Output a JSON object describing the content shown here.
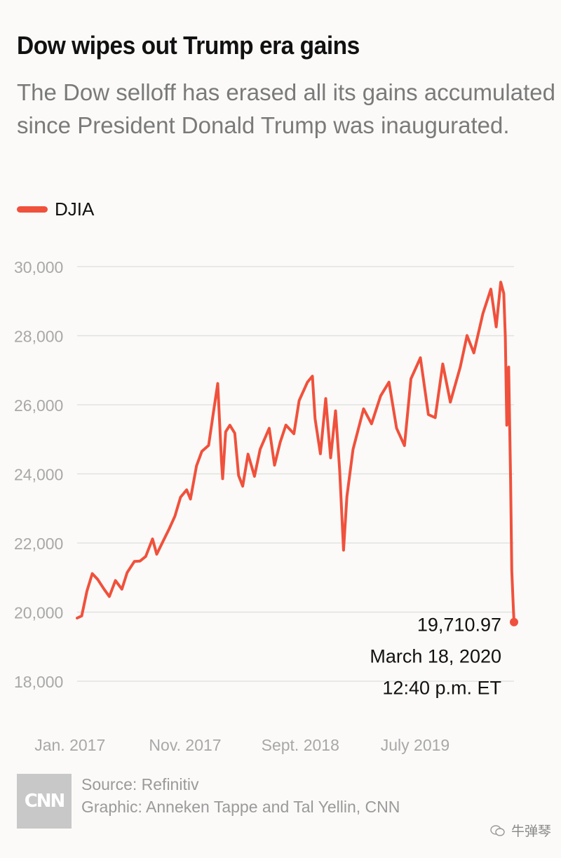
{
  "header": {
    "title": "Dow wipes out Trump era gains",
    "subtitle": "The Dow selloff has erased all its gains accumulated since President Donald Trump was inaugurated."
  },
  "legend": {
    "label": "DJIA",
    "color": "#f0513c"
  },
  "footer": {
    "logo_text": "CNN",
    "source": "Source: Refinitiv",
    "graphic": "Graphic: Anneken Tappe and Tal Yellin, CNN",
    "watermark": "牛弹琴"
  },
  "chart_data": {
    "type": "line",
    "title": "Dow wipes out Trump era gains",
    "subtitle": "The Dow selloff has erased all its gains accumulated since President Donald Trump was inaugurated.",
    "xlabel": "",
    "ylabel": "",
    "ylim": [
      18000,
      30000
    ],
    "xlim": [
      "2017-01-20",
      "2020-03-18"
    ],
    "y_ticks": [
      30000,
      28000,
      26000,
      24000,
      22000,
      20000,
      18000
    ],
    "y_tick_labels": [
      "30,000",
      "28,000",
      "26,000",
      "24,000",
      "22,000",
      "20,000",
      "18,000"
    ],
    "x_ticks": [
      {
        "date": "2017-01-01",
        "label": "Jan. 2017"
      },
      {
        "date": "2017-11-01",
        "label": "Nov. 2017"
      },
      {
        "date": "2018-09-01",
        "label": "Sept. 2018"
      },
      {
        "date": "2019-07-01",
        "label": "July 2019"
      }
    ],
    "grid": true,
    "legend_position": "top-left",
    "series": [
      {
        "name": "DJIA",
        "color": "#f0513c",
        "points": [
          [
            "2017-01-20",
            19827
          ],
          [
            "2017-02-01",
            19890
          ],
          [
            "2017-02-15",
            20611
          ],
          [
            "2017-03-01",
            21115
          ],
          [
            "2017-03-15",
            20950
          ],
          [
            "2017-04-01",
            20663
          ],
          [
            "2017-04-15",
            20450
          ],
          [
            "2017-05-01",
            20913
          ],
          [
            "2017-05-18",
            20663
          ],
          [
            "2017-06-01",
            21144
          ],
          [
            "2017-06-20",
            21467
          ],
          [
            "2017-07-05",
            21479
          ],
          [
            "2017-07-20",
            21611
          ],
          [
            "2017-08-07",
            22118
          ],
          [
            "2017-08-18",
            21675
          ],
          [
            "2017-09-01",
            21988
          ],
          [
            "2017-09-20",
            22412
          ],
          [
            "2017-10-05",
            22775
          ],
          [
            "2017-10-20",
            23328
          ],
          [
            "2017-11-05",
            23539
          ],
          [
            "2017-11-15",
            23271
          ],
          [
            "2017-12-01",
            24231
          ],
          [
            "2017-12-15",
            24651
          ],
          [
            "2018-01-02",
            24824
          ],
          [
            "2018-01-15",
            25803
          ],
          [
            "2018-01-26",
            26616
          ],
          [
            "2018-02-05",
            24346
          ],
          [
            "2018-02-08",
            23860
          ],
          [
            "2018-02-16",
            25219
          ],
          [
            "2018-02-27",
            25410
          ],
          [
            "2018-03-12",
            25178
          ],
          [
            "2018-03-22",
            23957
          ],
          [
            "2018-04-02",
            23644
          ],
          [
            "2018-04-16",
            24573
          ],
          [
            "2018-05-03",
            23930
          ],
          [
            "2018-05-18",
            24715
          ],
          [
            "2018-06-11",
            25322
          ],
          [
            "2018-06-25",
            24252
          ],
          [
            "2018-07-10",
            24920
          ],
          [
            "2018-07-25",
            25414
          ],
          [
            "2018-08-15",
            25162
          ],
          [
            "2018-08-29",
            26124
          ],
          [
            "2018-09-20",
            26657
          ],
          [
            "2018-10-03",
            26828
          ],
          [
            "2018-10-10",
            25598
          ],
          [
            "2018-10-24",
            24583
          ],
          [
            "2018-11-07",
            26180
          ],
          [
            "2018-11-20",
            24465
          ],
          [
            "2018-12-03",
            25826
          ],
          [
            "2018-12-14",
            24100
          ],
          [
            "2018-12-24",
            21792
          ],
          [
            "2019-01-02",
            23346
          ],
          [
            "2019-01-18",
            24706
          ],
          [
            "2019-02-15",
            25883
          ],
          [
            "2019-03-08",
            25450
          ],
          [
            "2019-04-01",
            26258
          ],
          [
            "2019-04-23",
            26656
          ],
          [
            "2019-05-13",
            25324
          ],
          [
            "2019-06-03",
            24819
          ],
          [
            "2019-06-20",
            26753
          ],
          [
            "2019-07-15",
            27360
          ],
          [
            "2019-08-05",
            25718
          ],
          [
            "2019-08-23",
            25629
          ],
          [
            "2019-09-12",
            27182
          ],
          [
            "2019-10-02",
            26078
          ],
          [
            "2019-10-28",
            27090
          ],
          [
            "2019-11-15",
            28004
          ],
          [
            "2019-12-03",
            27503
          ],
          [
            "2019-12-27",
            28645
          ],
          [
            "2020-01-17",
            29348
          ],
          [
            "2020-01-31",
            28256
          ],
          [
            "2020-02-12",
            29551
          ],
          [
            "2020-02-20",
            29220
          ],
          [
            "2020-02-24",
            27960
          ],
          [
            "2020-02-28",
            25409
          ],
          [
            "2020-03-04",
            27090
          ],
          [
            "2020-03-09",
            23851
          ],
          [
            "2020-03-12",
            21200
          ],
          [
            "2020-03-16",
            20189
          ],
          [
            "2020-03-18",
            19710.97
          ]
        ]
      }
    ],
    "annotations": [
      {
        "date": "2020-03-18",
        "value": 19710.97,
        "lines": [
          "19,710.97",
          "March 18, 2020",
          "12:40 p.m. ET"
        ]
      }
    ]
  }
}
